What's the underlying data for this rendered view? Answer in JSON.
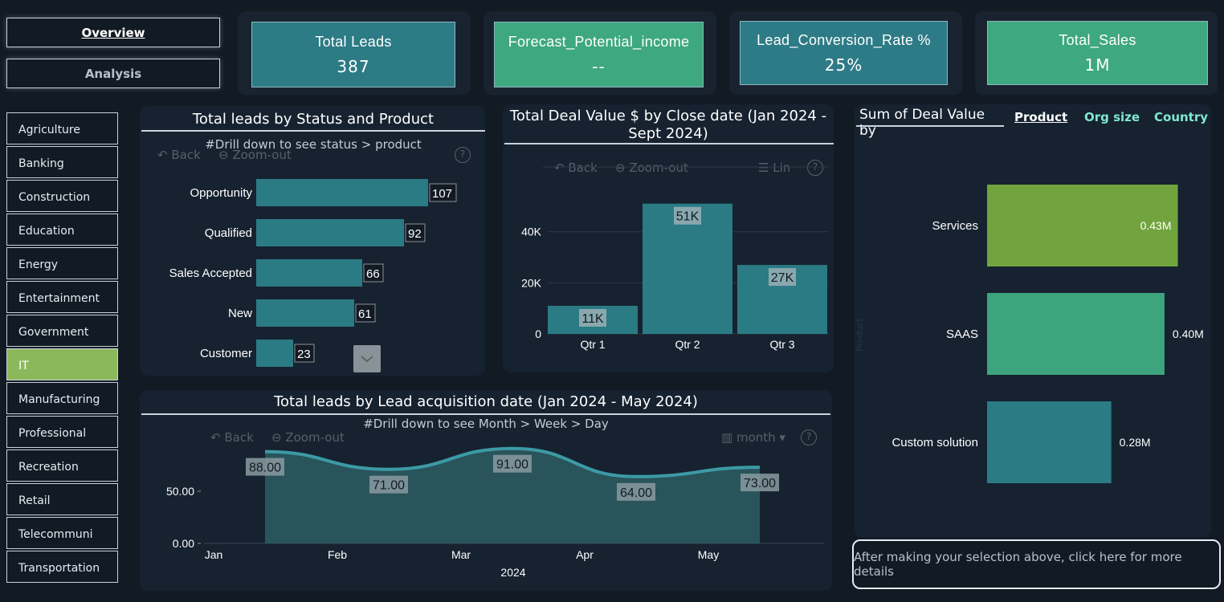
{
  "nav": {
    "overview": "Overview",
    "analysis": "Analysis"
  },
  "kpis": [
    {
      "title": "Total Leads",
      "value": "387"
    },
    {
      "title": "Forecast_Potential_income",
      "value": "--"
    },
    {
      "title": "Lead_Conversion_Rate %",
      "value": "25%"
    },
    {
      "title": "Total_Sales",
      "value": "1M"
    }
  ],
  "industries": [
    "Agriculture",
    "Banking",
    "Construction",
    "Education",
    "Energy",
    "Entertainment",
    "Government",
    "IT",
    "Manufacturing",
    "Professional",
    "Recreation",
    "Retail",
    "Telecommuni",
    "Transportation"
  ],
  "selected_industry": "IT",
  "status_chart": {
    "title": "Total leads by Status and Product",
    "subtitle": "#Drill down to see status > product",
    "back": "Back",
    "zoom": "Zoom-out",
    "help": "?"
  },
  "deal_chart": {
    "title_line1": "Total Deal Value $ by Close date (Jan 2024 -",
    "title_line2": "Sept 2024)",
    "back": "Back",
    "zoom": "Zoom-out",
    "lin": "Lin",
    "help": "?"
  },
  "product_chart": {
    "title": "Sum of Deal Value by",
    "tabs": [
      "Product",
      "Org size",
      "Country"
    ],
    "axis_label": "Product"
  },
  "leads_chart": {
    "title": "Total leads by Lead acquisition date (Jan 2024 - May 2024)",
    "subtitle": "#Drill down to see Month > Week > Day",
    "back": "Back",
    "zoom": "Zoom-out",
    "month": "month",
    "help": "?"
  },
  "details_button": "After making your selection above, click here for more details",
  "chart_data": [
    {
      "type": "bar",
      "orientation": "horizontal",
      "title": "Total leads by Status and Product",
      "categories": [
        "Opportunity",
        "Qualified",
        "Sales Accepted",
        "New",
        "Customer"
      ],
      "values": [
        107,
        92,
        66,
        61,
        23
      ],
      "labels": [
        "107",
        "92",
        "66",
        "61",
        "23"
      ],
      "xlim": [
        0,
        110
      ],
      "color": "#2b7b85"
    },
    {
      "type": "bar",
      "title": "Total Deal Value $ by Close date (Jan 2024 - Sept 2024)",
      "categories": [
        "Qtr 1",
        "Qtr 2",
        "Qtr 3"
      ],
      "values": [
        11000,
        51000,
        27000
      ],
      "labels": [
        "11K",
        "51K",
        "27K"
      ],
      "ylim": [
        0,
        55000
      ],
      "yticks": [
        0,
        20000,
        40000
      ],
      "ytick_labels": [
        "0",
        "20K",
        "40K"
      ],
      "color": "#2b7b85"
    },
    {
      "type": "bar",
      "orientation": "horizontal",
      "title": "Sum of Deal Value by Product",
      "categories": [
        "Services",
        "SAAS",
        "Custom solution"
      ],
      "values": [
        0.43,
        0.4,
        0.28
      ],
      "labels": [
        "0.43M",
        "0.40M",
        "0.28M"
      ],
      "unit": "M",
      "xlim": [
        0,
        0.5
      ],
      "colors": [
        "#72a43e",
        "#3ea47e",
        "#2b7b85"
      ]
    },
    {
      "type": "area",
      "title": "Total leads by Lead acquisition date (Jan 2024 - May 2024)",
      "x": [
        "Jan",
        "Feb",
        "Mar",
        "Apr",
        "May"
      ],
      "values": [
        88,
        71,
        91,
        64,
        73
      ],
      "labels": [
        "88.00",
        "71.00",
        "91.00",
        "64.00",
        "73.00"
      ],
      "xlabel": "2024",
      "ylim": [
        0,
        100
      ],
      "yticks": [
        0,
        50
      ],
      "ytick_labels": [
        "0.00",
        "50.00"
      ],
      "color": "#2b7b85"
    }
  ]
}
